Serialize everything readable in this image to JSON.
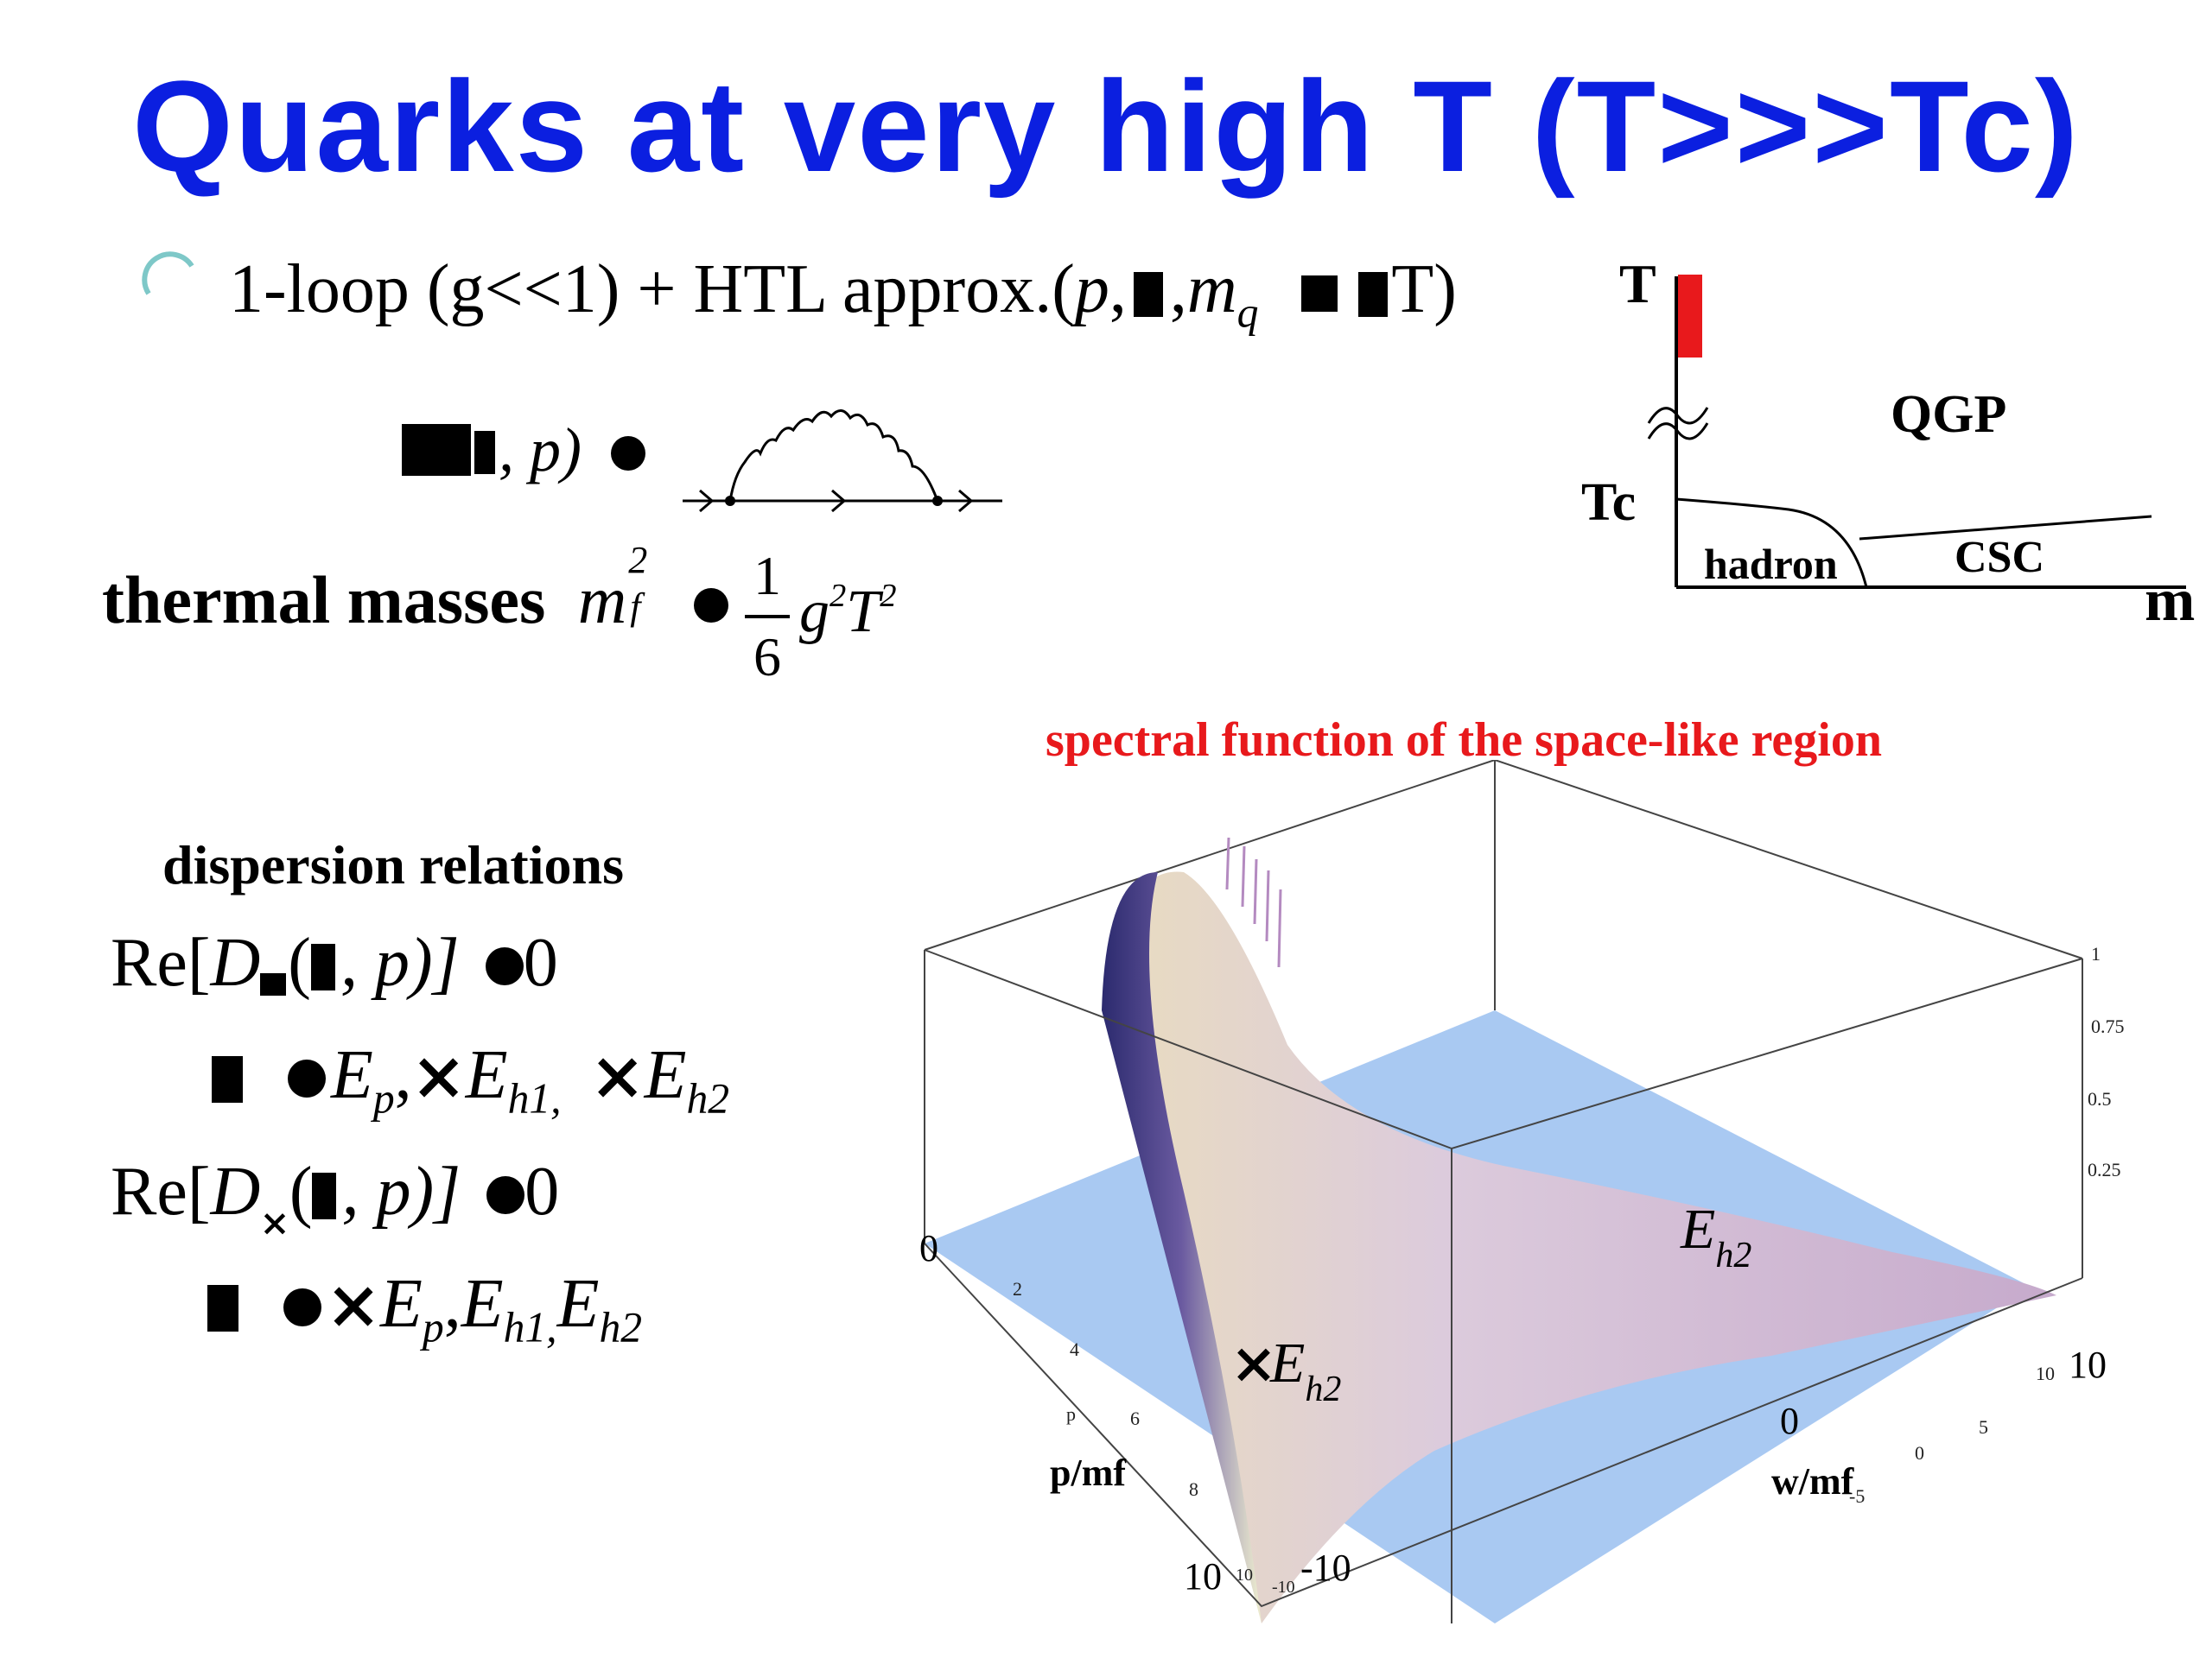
{
  "slide": {
    "title": "Quarks at very high T (T>>>Tc)",
    "bullet": {
      "prefix": "1-loop (g<<1) + HTL approx.(",
      "p": "p",
      "comma": ",",
      "m": "m",
      "m_sub": "q",
      "suffix": "T)"
    },
    "self_energy": {
      "args": ", p)"
    },
    "thermal": {
      "label": "thermal masses",
      "m": "m",
      "m_sup": "2",
      "m_sub": "f",
      "frac_num": "1",
      "frac_den": "6",
      "g": "g",
      "g_sup": "2",
      "T": "T",
      "T_sup": "2"
    },
    "dispersion": {
      "heading": "dispersion relations",
      "re1": "Re[",
      "D": "D",
      "args": ", p)]",
      "zero": "0",
      "E": "E",
      "sub_p": "p",
      "sub_h1": "h1,",
      "sub_h1_b": "h1,",
      "sub_h2": "h2",
      "comma": ","
    }
  },
  "phase_diagram": {
    "axis_T": "T",
    "axis_m": "m",
    "tc": "Tc",
    "qgp": "QGP",
    "hadron": "hadron",
    "csc": "CSC",
    "colors": {
      "hot_bar": "#e8191c",
      "lines": "#000000"
    }
  },
  "plot3d": {
    "title": "spectral function of the space-like region",
    "title_color": "#e8191c",
    "x_label": "p/mf",
    "x_small": "p",
    "y_label": "w/mf",
    "x_ticks": [
      "2",
      "4",
      "6",
      "8",
      "10"
    ],
    "x_origin": "0",
    "x_end": "10",
    "y_ticks": [
      "-5",
      "0",
      "5",
      "10"
    ],
    "y_big_0": "0",
    "y_big_10": "10",
    "y_big_m10": "-10",
    "y_small_m10": "-10",
    "x_small_10": "10",
    "z_ticks": [
      "0.25",
      "0.5",
      "0.75",
      "1"
    ],
    "label_eh2": "E",
    "label_eh2_sub": "h2",
    "label_meh2": "E",
    "label_meh2_sub": "h2",
    "colors": {
      "floor": "#a9c9f2",
      "surface": "#d8c3dd",
      "ridge": "#3a3a78"
    }
  }
}
